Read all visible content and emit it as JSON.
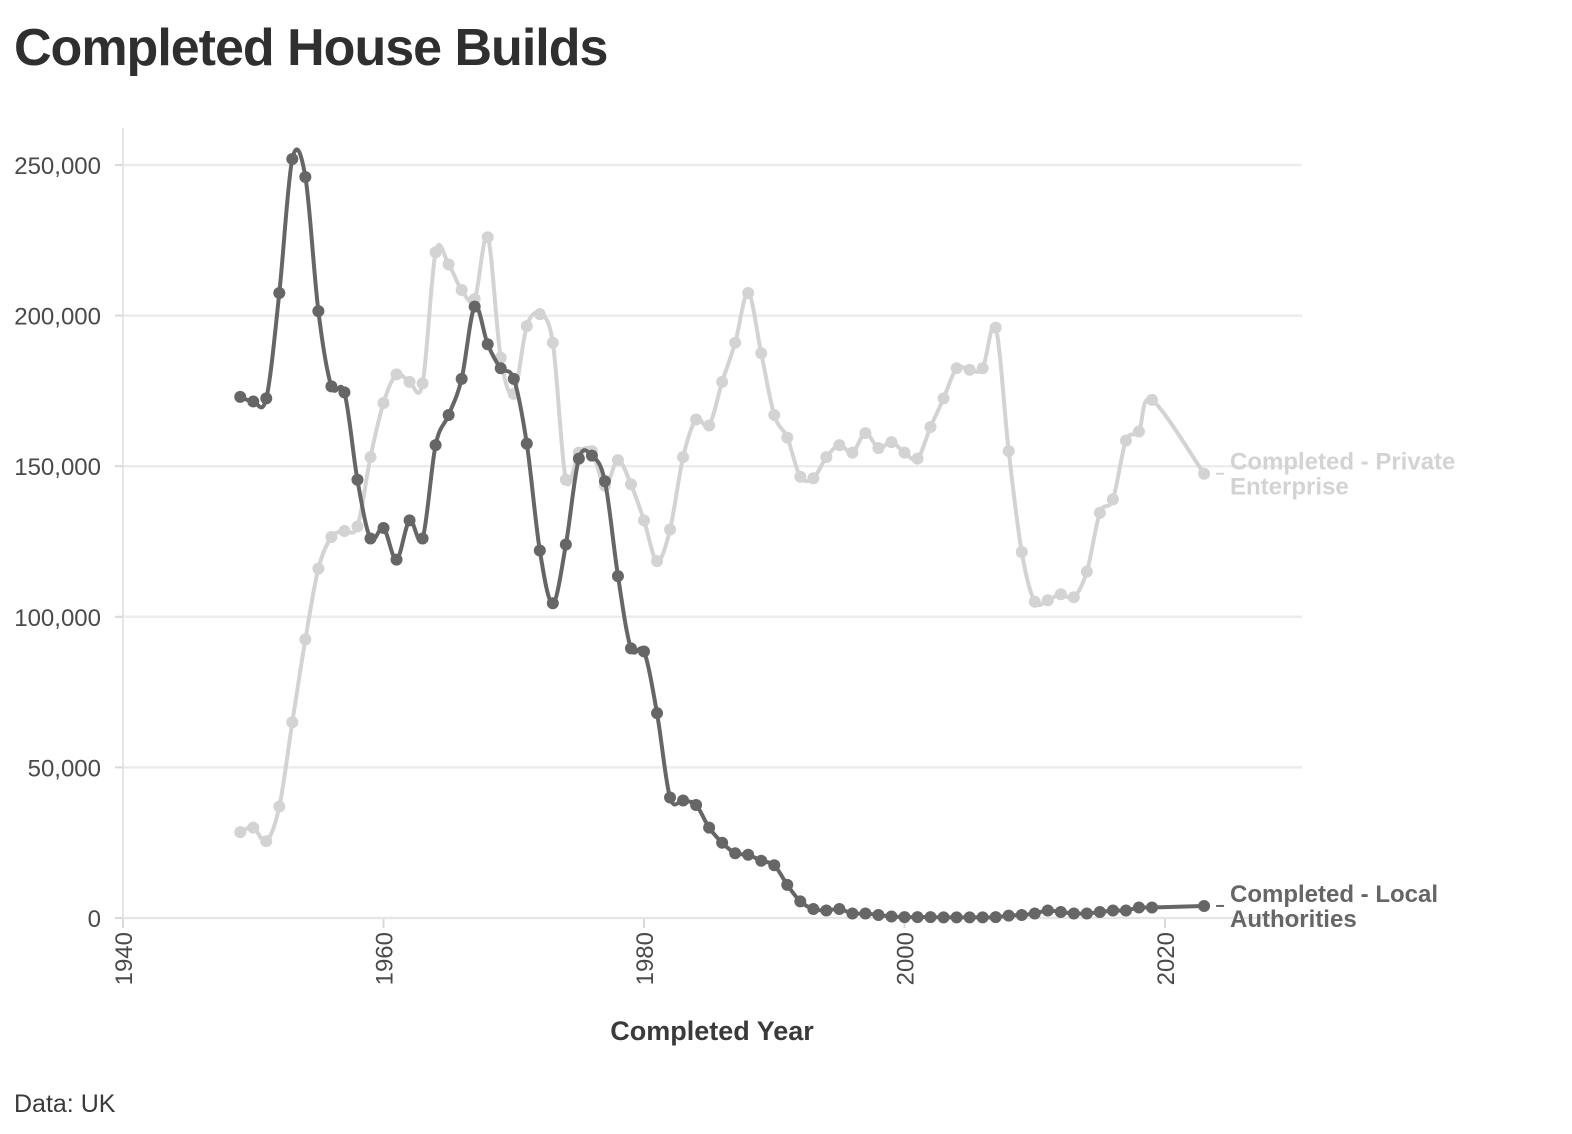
{
  "title": "Completed House Builds",
  "caption": "Data: UK",
  "chart_data": {
    "type": "line",
    "title": "Completed House Builds",
    "xlabel": "Completed Year",
    "ylabel": "",
    "xlim": [
      1940,
      2023
    ],
    "ylim": [
      0,
      260000
    ],
    "x_ticks": [
      1940,
      1960,
      1980,
      2000,
      2020
    ],
    "y_ticks": [
      0,
      50000,
      100000,
      150000,
      200000,
      250000
    ],
    "y_tick_labels": [
      "0",
      "50,000",
      "100,000",
      "150,000",
      "200,000",
      "250,000"
    ],
    "grid": "horizontal",
    "legend": "direct labels at line ends (right)",
    "series": [
      {
        "name": "Completed - Private Enterprise",
        "label_lines": [
          "Completed - Private",
          "Enterprise"
        ],
        "color": "#d3d3d3",
        "x": [
          1949,
          1950,
          1951,
          1952,
          1953,
          1954,
          1955,
          1956,
          1957,
          1958,
          1959,
          1960,
          1961,
          1962,
          1963,
          1964,
          1965,
          1966,
          1967,
          1968,
          1969,
          1970,
          1971,
          1972,
          1973,
          1974,
          1975,
          1976,
          1977,
          1978,
          1979,
          1980,
          1981,
          1982,
          1983,
          1984,
          1985,
          1986,
          1987,
          1988,
          1989,
          1990,
          1991,
          1992,
          1993,
          1994,
          1995,
          1996,
          1997,
          1998,
          1999,
          2000,
          2001,
          2002,
          2003,
          2004,
          2005,
          2006,
          2007,
          2008,
          2009,
          2010,
          2011,
          2012,
          2013,
          2014,
          2015,
          2016,
          2017,
          2018,
          2019,
          2023
        ],
        "values": [
          28500,
          30000,
          25500,
          37000,
          65000,
          92500,
          116000,
          126500,
          128500,
          130000,
          153000,
          171000,
          180500,
          178000,
          177500,
          221000,
          217000,
          208500,
          205500,
          226000,
          186000,
          174000,
          196500,
          200500,
          191000,
          145500,
          154500,
          155000,
          143500,
          152000,
          144000,
          132000,
          118500,
          129000,
          153000,
          165500,
          163500,
          178000,
          191000,
          207500,
          187500,
          167000,
          159500,
          146500,
          146000,
          153000,
          157000,
          154500,
          161000,
          156000,
          158000,
          154500,
          152500,
          163000,
          172500,
          182500,
          182000,
          182500,
          196000,
          155000,
          121500,
          105000,
          105500,
          107500,
          106500,
          115000,
          134500,
          139000,
          158500,
          161500,
          172000,
          147500
        ]
      },
      {
        "name": "Completed - Local Authorities",
        "label_lines": [
          "Completed - Local",
          "Authorities"
        ],
        "color": "#666666",
        "x": [
          1949,
          1950,
          1951,
          1952,
          1953,
          1954,
          1955,
          1956,
          1957,
          1958,
          1959,
          1960,
          1961,
          1962,
          1963,
          1964,
          1965,
          1966,
          1967,
          1968,
          1969,
          1970,
          1971,
          1972,
          1973,
          1974,
          1975,
          1976,
          1977,
          1978,
          1979,
          1980,
          1981,
          1982,
          1983,
          1984,
          1985,
          1986,
          1987,
          1988,
          1989,
          1990,
          1991,
          1992,
          1993,
          1994,
          1995,
          1996,
          1997,
          1998,
          1999,
          2000,
          2001,
          2002,
          2003,
          2004,
          2005,
          2006,
          2007,
          2008,
          2009,
          2010,
          2011,
          2012,
          2013,
          2014,
          2015,
          2016,
          2017,
          2018,
          2019,
          2023
        ],
        "values": [
          173000,
          171500,
          172500,
          207500,
          252000,
          246000,
          201500,
          176500,
          174500,
          145500,
          126000,
          129500,
          119000,
          132000,
          126000,
          157000,
          167000,
          179000,
          203000,
          190500,
          182500,
          179000,
          157500,
          122000,
          104500,
          124000,
          152500,
          153500,
          145000,
          113500,
          89500,
          88500,
          68000,
          40000,
          39000,
          37500,
          30000,
          25000,
          21500,
          21000,
          19000,
          17500,
          11000,
          5500,
          3000,
          2500,
          3000,
          1500,
          1500,
          1000,
          500,
          300,
          300,
          300,
          200,
          200,
          200,
          200,
          300,
          800,
          1000,
          1500,
          2500,
          2000,
          1500,
          1500,
          2000,
          2500,
          2500,
          3500,
          3500,
          4000
        ]
      }
    ]
  }
}
